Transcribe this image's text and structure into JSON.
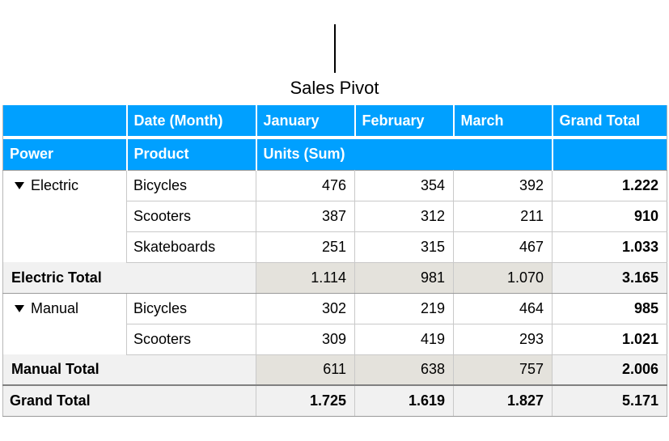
{
  "title": "Sales Pivot",
  "colors": {
    "header_bg": "#00a0ff",
    "header_fg": "#ffffff",
    "subtotal_bg": "#f1f1f1",
    "subtotal_month_bg": "#e4e2dc",
    "grid": "#c9c9c9"
  },
  "header": {
    "date_label": "Date (Month)",
    "months": {
      "jan": "January",
      "feb": "February",
      "mar": "March"
    },
    "grand_total": "Grand Total",
    "power": "Power",
    "product": "Product",
    "units": "Units (Sum)"
  },
  "groups": {
    "electric": {
      "label": "Electric",
      "rows": {
        "bicycles": {
          "label": "Bicycles",
          "jan": "476",
          "feb": "354",
          "mar": "392",
          "total": "1.222"
        },
        "scooters": {
          "label": "Scooters",
          "jan": "387",
          "feb": "312",
          "mar": "211",
          "total": "910"
        },
        "skateboards": {
          "label": "Skateboards",
          "jan": "251",
          "feb": "315",
          "mar": "467",
          "total": "1.033"
        }
      },
      "subtotal": {
        "label": "Electric Total",
        "jan": "1.114",
        "feb": "981",
        "mar": "1.070",
        "total": "3.165"
      }
    },
    "manual": {
      "label": "Manual",
      "rows": {
        "bicycles": {
          "label": "Bicycles",
          "jan": "302",
          "feb": "219",
          "mar": "464",
          "total": "985"
        },
        "scooters": {
          "label": "Scooters",
          "jan": "309",
          "feb": "419",
          "mar": "293",
          "total": "1.021"
        }
      },
      "subtotal": {
        "label": "Manual Total",
        "jan": "611",
        "feb": "638",
        "mar": "757",
        "total": "2.006"
      }
    }
  },
  "grand_total": {
    "label": "Grand Total",
    "jan": "1.725",
    "feb": "1.619",
    "mar": "1.827",
    "total": "5.171"
  }
}
